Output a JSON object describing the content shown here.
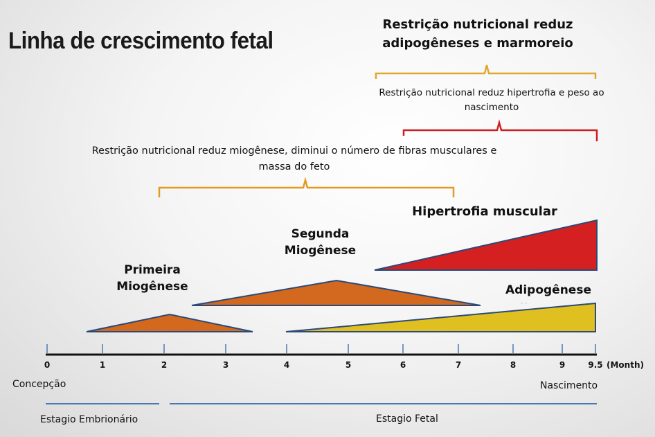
{
  "title": "Linha de crescimento fetal",
  "notes": {
    "adipogenese_restricao": "Restrição nutricional reduz adipogêneses e marmoreio",
    "hipertrofia_restricao": "Restrição nutricional  reduz hipertrofia  e peso ao nascimento",
    "miogenese_restricao": "Restrição nutricional  reduz miogênese, diminui o número de fibras musculares e massa do feto"
  },
  "phases": {
    "primeira": "Primeira Miogênese",
    "segunda": "Segunda Miogênese",
    "hipertrofia": "Hipertrofia muscular",
    "adipogenese": "Adipogênese"
  },
  "timeline": {
    "ticks": [
      "0",
      "1",
      "2",
      "3",
      "4",
      "5",
      "6",
      "7",
      "8",
      "9",
      "9.5"
    ],
    "unit": "(Month)",
    "start_label": "Concepção",
    "end_label": "Nascimento",
    "stage_embrionario": "Estagio  Embrionário",
    "stage_fetal": "Estagio  Fetal"
  },
  "colors": {
    "orange_bracket": "#e39a1f",
    "yellow_bracket": "#e0a82a",
    "red_bracket": "#cc1f1f",
    "orange_fill": "#d2691e",
    "red_fill": "#d42020",
    "yellow_fill": "#e0c020",
    "outline": "#2b4a78",
    "stage_line": "#4a78b0"
  }
}
